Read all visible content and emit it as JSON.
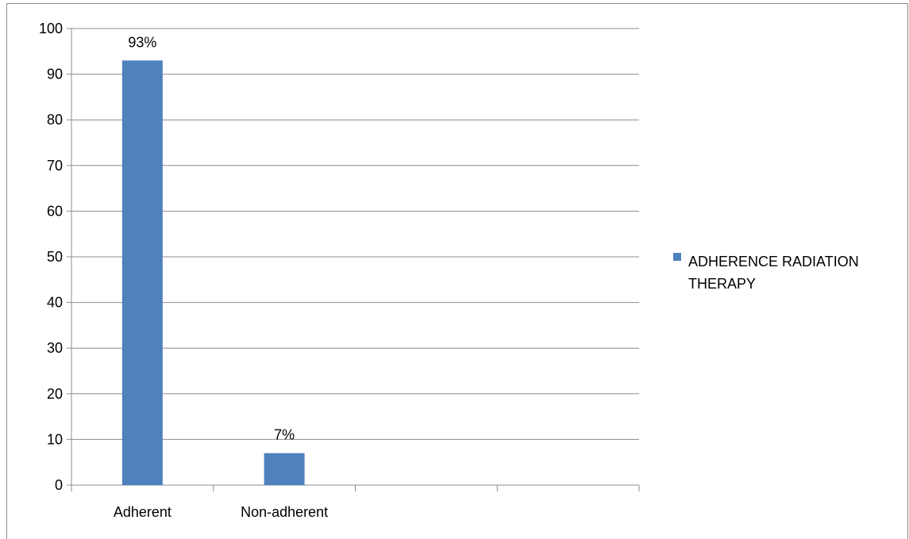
{
  "chart_data": {
    "type": "bar",
    "categories": [
      "Adherent",
      "Non-adherent",
      "",
      ""
    ],
    "series": [
      {
        "name": "ADHERENCE RADIATION THERAPY",
        "values": [
          93,
          7,
          null,
          null
        ],
        "data_labels": [
          "93%",
          "7%",
          "",
          ""
        ],
        "color": "#4f81bd"
      }
    ],
    "ylim": [
      0,
      100
    ],
    "yticks": [
      0,
      10,
      20,
      30,
      40,
      50,
      60,
      70,
      80,
      90,
      100
    ],
    "title": "",
    "xlabel": "",
    "ylabel": "",
    "grid": "horizontal",
    "legend_position": "right",
    "legend_lines": [
      "ADHERENCE RADIATION",
      "THERAPY"
    ]
  }
}
